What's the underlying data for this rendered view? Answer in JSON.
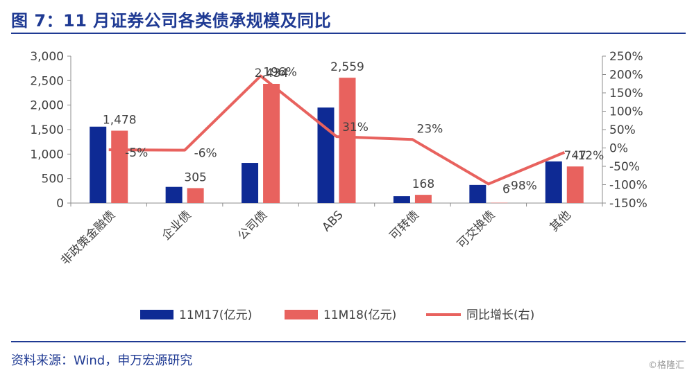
{
  "header": {
    "title": "图 7：11 月证券公司各类债承规模及同比"
  },
  "footer": {
    "source": "资料来源：Wind，申万宏源研究",
    "watermark": "©格隆汇"
  },
  "chart_data": {
    "type": "bar",
    "title": "图 7：11 月证券公司各类债承规模及同比",
    "categories": [
      "非政策金融债",
      "企业债",
      "公司债",
      "ABS",
      "可转债",
      "可交换债",
      "其他"
    ],
    "series": [
      {
        "name": "11M17(亿元)",
        "type": "bar",
        "axis": "left",
        "color": "#0e2a94",
        "values": [
          1560,
          330,
          820,
          1950,
          140,
          370,
          850
        ]
      },
      {
        "name": "11M18(亿元)",
        "type": "bar",
        "axis": "left",
        "color": "#e8625e",
        "values": [
          1478,
          305,
          2434,
          2559,
          168,
          6,
          747
        ],
        "labels": [
          "1,478",
          "305",
          "2,434",
          "2,559",
          "168",
          "6",
          "747"
        ]
      },
      {
        "name": "同比增长(右)",
        "type": "line",
        "axis": "right",
        "color": "#e8625e",
        "values": [
          -5,
          -6,
          196,
          31,
          23,
          -98,
          -12
        ],
        "labels": [
          "-5%",
          "-6%",
          "196%",
          "31%",
          "23%",
          "-98%",
          "-12%"
        ]
      }
    ],
    "left_axis": {
      "ylim": [
        0,
        3000
      ],
      "ticks": [
        "3,000",
        "2,500",
        "2,000",
        "1,500",
        "1,000",
        "500",
        "0"
      ]
    },
    "right_axis": {
      "ylim": [
        -150,
        250
      ],
      "ticks": [
        "250%",
        "200%",
        "150%",
        "100%",
        "50%",
        "0%",
        "-50%",
        "-100%",
        "-150%"
      ]
    },
    "legend": {
      "placement": "bottom"
    },
    "grid": false
  }
}
